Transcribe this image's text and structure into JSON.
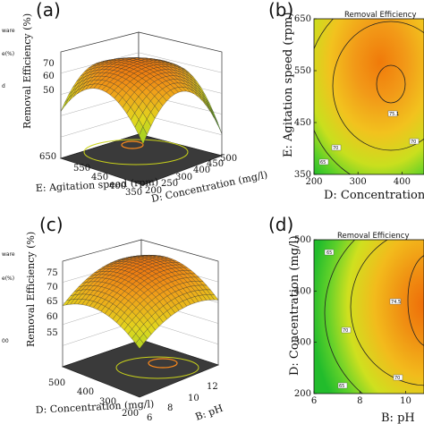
{
  "figure": {
    "side_fragments": [
      "ware",
      "e(%)",
      "d",
      "ware",
      "e(%)",
      "00"
    ]
  },
  "chart_data": [
    {
      "panel": "(a)",
      "type": "surface",
      "zlabel": "Removal Efficiency (%)",
      "z_ticks": [
        "50",
        "60",
        "70"
      ],
      "x_axis": {
        "label": "D: Concentration (mg/l)",
        "ticks": [
          "200",
          "250",
          "300",
          "400",
          "450",
          "500"
        ]
      },
      "y_axis": {
        "label": "E: Agitation speed (rpm)",
        "ticks": [
          "350",
          "400",
          "450",
          "550",
          "650"
        ]
      },
      "zlim": [
        50,
        76
      ]
    },
    {
      "panel": "(b)",
      "type": "contour",
      "title": "Removal Efficiency",
      "xlabel": "D: Concentration",
      "ylabel": "E: Agitation speed (rpm)",
      "x_ticks": [
        "200",
        "300",
        "400"
      ],
      "y_ticks": [
        "350",
        "450",
        "550",
        "650"
      ],
      "xlim": [
        200,
        450
      ],
      "ylim": [
        350,
        650
      ],
      "contour_labels": [
        "75.1",
        "70",
        "70",
        "65"
      ]
    },
    {
      "panel": "(c)",
      "type": "surface",
      "zlabel": "Removal Efficiency (%)",
      "z_ticks": [
        "55",
        "60",
        "65",
        "70",
        "75"
      ],
      "x_axis": {
        "label": "B: pH",
        "ticks": [
          "6",
          "8",
          "10",
          "12"
        ]
      },
      "y_axis": {
        "label": "D: Concentration (mg/l)",
        "ticks": [
          "200",
          "300",
          "400",
          "500"
        ]
      },
      "zlim": [
        52,
        78
      ]
    },
    {
      "panel": "(d)",
      "type": "contour",
      "title": "Removal Efficiency",
      "xlabel": "B: pH",
      "ylabel": "D: Concentration (mg/l)",
      "x_ticks": [
        "6",
        "8",
        "10"
      ],
      "y_ticks": [
        "200",
        "300",
        "400",
        "500"
      ],
      "xlim": [
        6,
        10.8
      ],
      "ylim": [
        200,
        500
      ],
      "contour_labels": [
        "65",
        "70",
        "70",
        "74.5",
        "65"
      ]
    }
  ]
}
